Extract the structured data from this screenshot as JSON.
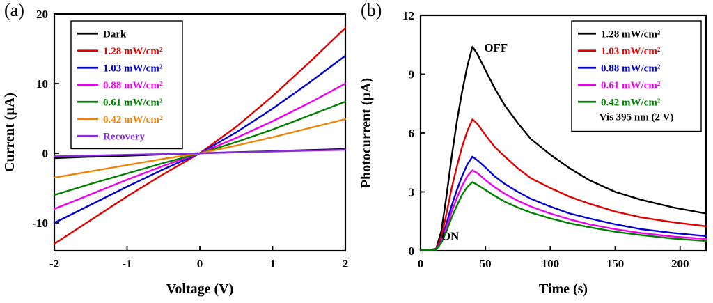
{
  "panels": {
    "a": {
      "label": "(a)"
    },
    "b": {
      "label": "(b)"
    }
  },
  "chart_data": [
    {
      "type": "line",
      "title": "",
      "xlabel": "Voltage (V)",
      "ylabel": "Current (µA)",
      "xlim": [
        -2,
        2
      ],
      "ylim": [
        -14,
        20
      ],
      "xticks": [
        -2,
        -1,
        0,
        1,
        2
      ],
      "yticks": [
        -10,
        0,
        10,
        20
      ],
      "grid": false,
      "legend_position": "top-left",
      "x": [
        -2,
        -1.5,
        -1,
        -0.5,
        0,
        0.5,
        1,
        1.5,
        2
      ],
      "series": [
        {
          "name": "Dark",
          "color": "#000000",
          "y": [
            -0.7,
            -0.5,
            -0.35,
            -0.17,
            0,
            0.15,
            0.3,
            0.45,
            0.6
          ]
        },
        {
          "name": "1.28 mW/cm²",
          "color": "#e00000",
          "y": [
            -13,
            -9.6,
            -6.2,
            -3.0,
            0,
            3.8,
            8.2,
            13,
            18
          ]
        },
        {
          "name": "1.03 mW/cm²",
          "color": "#0000d2",
          "y": [
            -10,
            -7.4,
            -4.8,
            -2.3,
            0,
            3.0,
            6.4,
            10.1,
            14
          ]
        },
        {
          "name": "0.88 mW/cm²",
          "color": "#ee00ee",
          "y": [
            -8,
            -5.9,
            -3.8,
            -1.8,
            0,
            2.2,
            4.6,
            7.2,
            10
          ]
        },
        {
          "name": "0.61 mW/cm²",
          "color": "#008000",
          "y": [
            -6,
            -4.4,
            -2.9,
            -1.4,
            0,
            1.6,
            3.4,
            5.4,
            7.4
          ]
        },
        {
          "name": "0.42 mW/cm²",
          "color": "#f08200",
          "y": [
            -3.5,
            -2.6,
            -1.7,
            -0.8,
            0,
            1.1,
            2.3,
            3.6,
            4.9
          ]
        },
        {
          "name": "Recovery",
          "color": "#8a2be2",
          "y": [
            -0.45,
            -0.33,
            -0.22,
            -0.11,
            0,
            0.12,
            0.25,
            0.38,
            0.5
          ]
        }
      ],
      "annotations": []
    },
    {
      "type": "line",
      "title": "",
      "xlabel": "Time (s)",
      "ylabel": "Photocurrent (µA)",
      "xlim": [
        0,
        220
      ],
      "ylim": [
        0,
        12
      ],
      "xticks": [
        0,
        50,
        100,
        150,
        200
      ],
      "yticks": [
        0,
        3,
        6,
        9,
        12
      ],
      "grid": false,
      "legend_position": "top-right",
      "legend_note": "Vis 395 nm (2 V)",
      "x": [
        0,
        8,
        12,
        16,
        20,
        24,
        28,
        32,
        36,
        40,
        44,
        50,
        57,
        65,
        75,
        85,
        100,
        115,
        130,
        150,
        170,
        195,
        220
      ],
      "series": [
        {
          "name": "1.28 mW/cm²",
          "color": "#000000",
          "y": [
            0.05,
            0.05,
            0.1,
            1.0,
            2.8,
            4.8,
            6.6,
            8.1,
            9.4,
            10.4,
            10.0,
            9.2,
            8.3,
            7.4,
            6.5,
            5.7,
            4.9,
            4.2,
            3.6,
            3.0,
            2.6,
            2.2,
            1.9
          ]
        },
        {
          "name": "1.03 mW/cm²",
          "color": "#e00000",
          "y": [
            0.05,
            0.05,
            0.08,
            0.7,
            1.9,
            3.2,
            4.3,
            5.3,
            6.1,
            6.7,
            6.45,
            5.9,
            5.3,
            4.8,
            4.2,
            3.7,
            3.2,
            2.75,
            2.4,
            2.0,
            1.7,
            1.45,
            1.25
          ]
        },
        {
          "name": "0.88 mW/cm²",
          "color": "#0000d2",
          "y": [
            0.05,
            0.05,
            0.07,
            0.5,
            1.4,
            2.3,
            3.1,
            3.8,
            4.4,
            4.8,
            4.6,
            4.25,
            3.8,
            3.4,
            3.0,
            2.65,
            2.25,
            1.9,
            1.65,
            1.35,
            1.1,
            0.9,
            0.75
          ]
        },
        {
          "name": "0.61 mW/cm²",
          "color": "#ee00ee",
          "y": [
            0.05,
            0.05,
            0.06,
            0.45,
            1.2,
            2.0,
            2.7,
            3.3,
            3.8,
            4.1,
            3.95,
            3.6,
            3.25,
            2.9,
            2.55,
            2.25,
            1.9,
            1.6,
            1.35,
            1.1,
            0.9,
            0.72,
            0.6
          ]
        },
        {
          "name": "0.42 mW/cm²",
          "color": "#008000",
          "y": [
            0.05,
            0.05,
            0.05,
            0.4,
            1.0,
            1.7,
            2.3,
            2.85,
            3.25,
            3.5,
            3.35,
            3.1,
            2.8,
            2.5,
            2.2,
            1.95,
            1.65,
            1.4,
            1.2,
            0.97,
            0.8,
            0.62,
            0.5
          ]
        }
      ],
      "annotations": [
        {
          "text": "OFF",
          "x": 49,
          "y": 10.15
        },
        {
          "text": "ON",
          "x": 16,
          "y": 0.55
        }
      ]
    }
  ]
}
